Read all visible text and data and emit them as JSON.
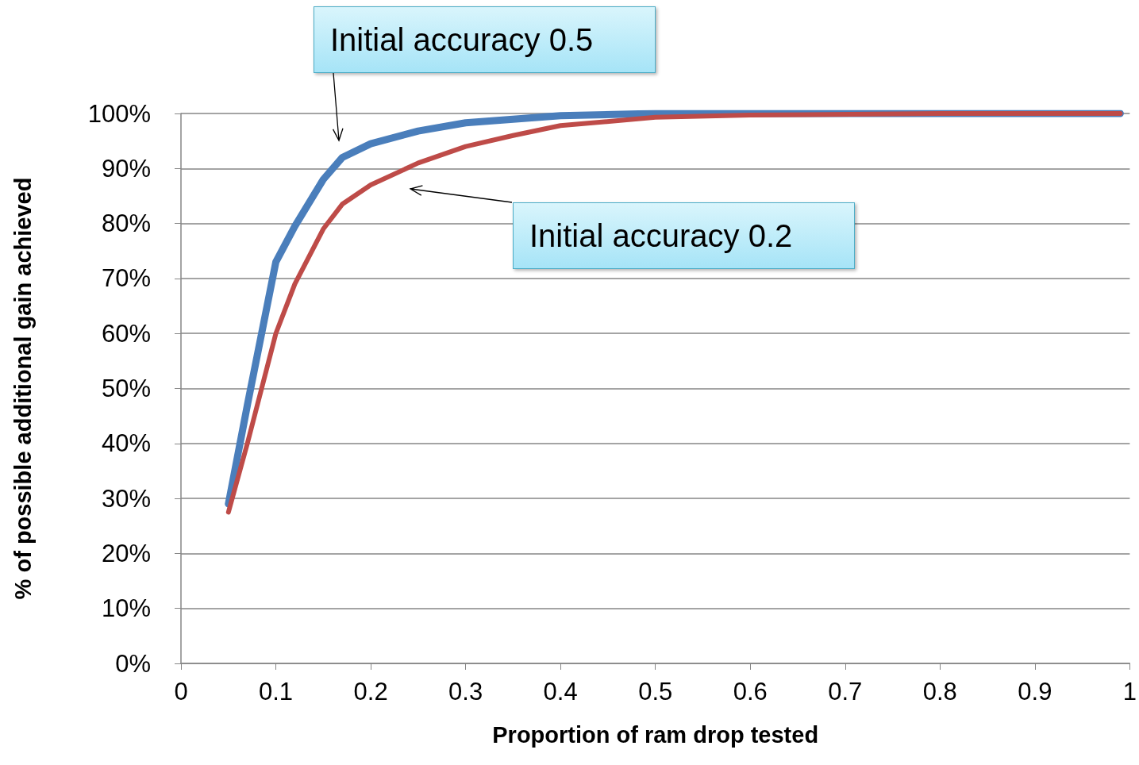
{
  "chart_data": {
    "type": "line",
    "xlabel": "Proportion of ram drop tested",
    "ylabel": "% of possible additional gain achieved",
    "xlim": [
      0,
      1
    ],
    "xticks": [
      0,
      0.1,
      0.2,
      0.3,
      0.4,
      0.5,
      0.6,
      0.7,
      0.8,
      0.9,
      1
    ],
    "ylim": [
      0,
      100
    ],
    "yticks": [
      {
        "value": 0,
        "label": "0%"
      },
      {
        "value": 10,
        "label": "10%"
      },
      {
        "value": 20,
        "label": "20%"
      },
      {
        "value": 30,
        "label": "30%"
      },
      {
        "value": 40,
        "label": "40%"
      },
      {
        "value": 50,
        "label": "50%"
      },
      {
        "value": 60,
        "label": "60%"
      },
      {
        "value": 70,
        "label": "70%"
      },
      {
        "value": 80,
        "label": "80%"
      },
      {
        "value": 90,
        "label": "90%"
      },
      {
        "value": 100,
        "label": "100%"
      }
    ],
    "grid": "y",
    "marker": "none",
    "line_style": "solid",
    "series": [
      {
        "color": "#4a7ebb",
        "x": [
          0.05,
          0.07,
          0.1,
          0.12,
          0.15,
          0.17,
          0.2,
          0.25,
          0.3,
          0.4,
          0.5,
          0.6,
          0.8,
          0.99
        ],
        "values": [
          29,
          47,
          73,
          79.5,
          88,
          92,
          94.5,
          96.8,
          98.3,
          99.6,
          100,
          100,
          100,
          100
        ]
      },
      {
        "color": "#be4b48",
        "x": [
          0.05,
          0.07,
          0.1,
          0.12,
          0.15,
          0.17,
          0.2,
          0.25,
          0.3,
          0.35,
          0.4,
          0.5,
          0.6,
          0.8,
          0.99
        ],
        "values": [
          27.5,
          40,
          60,
          69,
          79,
          83.5,
          87,
          91,
          94,
          96,
          97.8,
          99.3,
          99.7,
          100,
          100
        ]
      }
    ],
    "annotations": [
      "Initial accuracy 0.5",
      "Initial accuracy 0.2"
    ]
  }
}
